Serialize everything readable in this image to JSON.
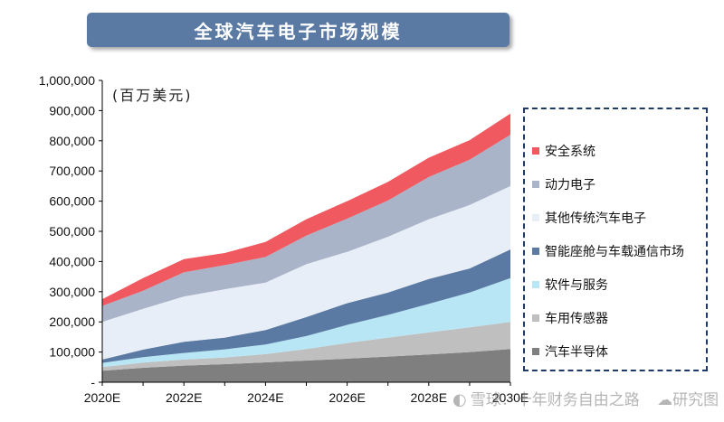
{
  "title": "全球汽车电子市场规模",
  "unit": "(百万美元)",
  "watermark": {
    "left_text": "雪球：十年财务自由之路",
    "right_text": "研究图"
  },
  "chart_data": {
    "type": "area",
    "stacked": true,
    "x": [
      2020,
      2021,
      2022,
      2023,
      2024,
      2025,
      2026,
      2027,
      2028,
      2029,
      2030
    ],
    "x_tick_labels": [
      "2020E",
      "2022E",
      "2024E",
      "2026E",
      "2028E",
      "2030E"
    ],
    "x_tick_values": [
      2020,
      2022,
      2024,
      2026,
      2028,
      2030
    ],
    "ylim": [
      0,
      1000000
    ],
    "y_ticks": [
      0,
      100000,
      200000,
      300000,
      400000,
      500000,
      600000,
      700000,
      800000,
      900000,
      1000000
    ],
    "y_tick_labels": [
      "-",
      "100,000",
      "200,000",
      "300,000",
      "400,000",
      "500,000",
      "600,000",
      "700,000",
      "800,000",
      "900,000",
      "1,000,000"
    ],
    "grid": false,
    "legend_position": "right",
    "series": [
      {
        "name": "汽车半导体",
        "color": "#7f7f7f",
        "values": [
          38000,
          48000,
          55000,
          60000,
          66000,
          72000,
          78000,
          85000,
          92000,
          100000,
          110000
        ]
      },
      {
        "name": "车用传感器",
        "color": "#bfbfbf",
        "values": [
          12000,
          17000,
          20000,
          22000,
          27000,
          38000,
          52000,
          63000,
          73000,
          82000,
          90000
        ]
      },
      {
        "name": "软件与服务",
        "color": "#b8e6f5",
        "values": [
          14000,
          18000,
          22000,
          27000,
          32000,
          43000,
          60000,
          75000,
          95000,
          115000,
          145000
        ]
      },
      {
        "name": "智能座舱与车载通信市场",
        "color": "#5b7aa3",
        "values": [
          11000,
          25000,
          37000,
          39000,
          48000,
          63000,
          72000,
          74000,
          82000,
          80000,
          95000
        ]
      },
      {
        "name": "其他传统汽车电子",
        "color": "#e8eef7",
        "values": [
          125000,
          135000,
          150000,
          160000,
          157000,
          175000,
          170000,
          185000,
          198000,
          210000,
          210000
        ]
      },
      {
        "name": "动力电子",
        "color": "#aab4c8",
        "values": [
          53000,
          60000,
          80000,
          80000,
          85000,
          95000,
          110000,
          120000,
          140000,
          150000,
          170000
        ]
      },
      {
        "name": "安全系统",
        "color": "#f0595f",
        "values": [
          22000,
          42000,
          44000,
          40000,
          50000,
          54000,
          58000,
          62000,
          64000,
          65000,
          70000
        ]
      }
    ]
  }
}
